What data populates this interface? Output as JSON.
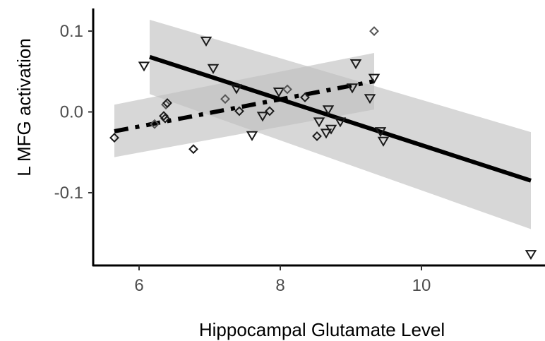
{
  "chart_data": {
    "type": "scatter",
    "xlabel": "Hippocampal Glutamate Level",
    "ylabel": "L MFG activation",
    "xlim": [
      5.35,
      11.75
    ],
    "ylim": [
      -0.19,
      0.128
    ],
    "x_ticks": [
      6,
      8,
      10
    ],
    "x_tick_labels": [
      "6",
      "8",
      "10"
    ],
    "y_ticks": [
      -0.1,
      0.0,
      0.1
    ],
    "y_tick_labels": [
      "-0.1",
      "0.0",
      "0.1"
    ],
    "grid": false,
    "legend": "none",
    "colors": {
      "axis": "#000000",
      "tick_label": "#4d4d4d",
      "band": "#bebebe",
      "line": "#000000",
      "triangle_marker": "#1a1a1a",
      "diamond_marker_dark": "#1a1a1a",
      "diamond_marker_light": "#555555"
    },
    "series": [
      {
        "marker": "triangle-down",
        "points": [
          [
            6.07,
            0.057
          ],
          [
            6.95,
            0.088
          ],
          [
            7.05,
            0.054
          ],
          [
            7.38,
            0.029
          ],
          [
            7.6,
            -0.029
          ],
          [
            7.75,
            -0.005
          ],
          [
            7.98,
            0.025
          ],
          [
            8.55,
            -0.012
          ],
          [
            8.65,
            -0.026
          ],
          [
            8.68,
            0.003
          ],
          [
            8.72,
            -0.021
          ],
          [
            8.85,
            -0.012
          ],
          [
            9.02,
            0.03
          ],
          [
            9.07,
            0.06
          ],
          [
            9.27,
            0.017
          ],
          [
            9.33,
            0.042
          ],
          [
            9.42,
            -0.024
          ],
          [
            9.46,
            -0.036
          ],
          [
            11.55,
            -0.176
          ]
        ],
        "fit": {
          "x": [
            6.15,
            11.55
          ],
          "y": [
            0.068,
            -0.085
          ],
          "ci_lower": [
            0.022,
            -0.145
          ],
          "ci_upper": [
            0.114,
            -0.025
          ],
          "linestyle": "solid"
        }
      },
      {
        "marker": "diamond",
        "points": [
          [
            5.65,
            -0.032
          ],
          [
            6.22,
            -0.015
          ],
          [
            6.35,
            -0.005
          ],
          [
            6.37,
            -0.008
          ],
          [
            6.38,
            0.009
          ],
          [
            6.4,
            0.011
          ],
          [
            6.77,
            -0.046
          ],
          [
            7.22,
            0.016
          ],
          [
            7.42,
            0.001
          ],
          [
            7.85,
            0.001
          ],
          [
            8.1,
            0.028
          ],
          [
            8.35,
            0.018
          ],
          [
            8.52,
            -0.03
          ],
          [
            9.33,
            0.1
          ]
        ],
        "fit": {
          "x": [
            5.65,
            9.33
          ],
          "y": [
            -0.024,
            0.038
          ],
          "ci_lower": [
            -0.056,
            0.003
          ],
          "ci_upper": [
            0.009,
            0.073
          ],
          "linestyle": "dashdot"
        }
      }
    ]
  }
}
